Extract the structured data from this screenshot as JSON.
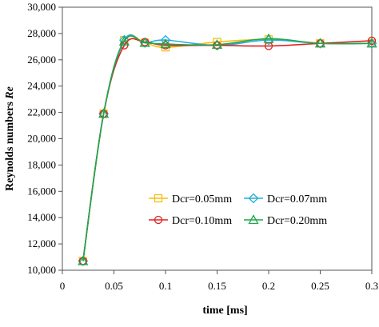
{
  "chart_data": {
    "type": "line",
    "xlabel": "time [ms]",
    "ylabel_main": "Reynolds numbers ",
    "ylabel_italic": "Re",
    "xlim": [
      0,
      0.3
    ],
    "ylim": [
      10000,
      30000
    ],
    "xticks": [
      0,
      0.05,
      0.1,
      0.15,
      0.2,
      0.25,
      0.3
    ],
    "xtick_labels": [
      "0",
      "0.05",
      "0.1",
      "0.15",
      "0.2",
      "0.25",
      "0.3"
    ],
    "yticks": [
      10000,
      12000,
      14000,
      16000,
      18000,
      20000,
      22000,
      24000,
      26000,
      28000,
      30000
    ],
    "ytick_labels": [
      "10,000",
      "12,000",
      "14,000",
      "16,000",
      "18,000",
      "20,000",
      "22,000",
      "24,000",
      "26,000",
      "28,000",
      "30,000"
    ],
    "grid": false,
    "legend_position": "center-right",
    "x": [
      0.02,
      0.04,
      0.06,
      0.063,
      0.08,
      0.1,
      0.15,
      0.2,
      0.25,
      0.3
    ],
    "series": [
      {
        "name": "Dcr=0.05mm",
        "marker": "square",
        "color": "#F5BE16",
        "x": [
          0.02,
          0.04,
          0.06,
          0.08,
          0.1,
          0.15,
          0.2,
          0.25,
          0.3
        ],
        "values": [
          10700,
          21900,
          27500,
          27300,
          26950,
          27350,
          27550,
          27250,
          27250
        ]
      },
      {
        "name": "Dcr=0.07mm",
        "marker": "diamond",
        "color": "#23AEDD",
        "x": [
          0.02,
          0.04,
          0.06,
          0.08,
          0.1,
          0.15,
          0.2,
          0.25,
          0.3
        ],
        "values": [
          10700,
          21900,
          27500,
          27300,
          27500,
          27100,
          27500,
          27250,
          27250
        ]
      },
      {
        "name": "Dcr=0.10mm",
        "marker": "circle",
        "color": "#E02020",
        "x": [
          0.02,
          0.04,
          0.06,
          0.08,
          0.1,
          0.15,
          0.2,
          0.25,
          0.3
        ],
        "values": [
          10700,
          21900,
          27100,
          27350,
          27100,
          27100,
          27050,
          27250,
          27450
        ]
      },
      {
        "name": "Dcr=0.20mm",
        "marker": "triangle",
        "color": "#1FA84A",
        "x": [
          0.02,
          0.04,
          0.06,
          0.08,
          0.1,
          0.15,
          0.2,
          0.25,
          0.3
        ],
        "values": [
          10700,
          21900,
          27400,
          27300,
          27200,
          27150,
          27600,
          27250,
          27250
        ]
      }
    ]
  }
}
